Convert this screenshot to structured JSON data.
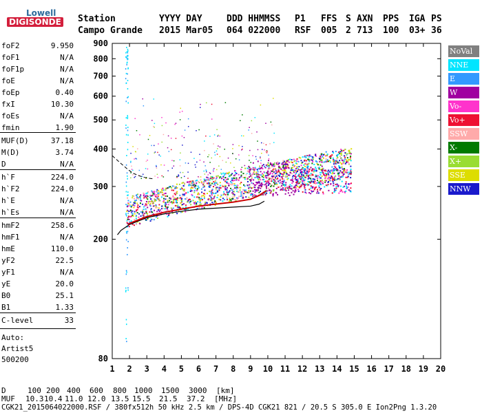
{
  "logo": {
    "line1": "Lowell",
    "line2": "DIGISONDE"
  },
  "header": {
    "labels": [
      "Station",
      "YYYY DAY",
      "DDD HHMMSS",
      "P1",
      "FFS",
      "S",
      "AXN",
      "PPS",
      "IGA",
      "PS"
    ],
    "values": [
      "Campo Grande",
      "2015 Mar05",
      "064 022000",
      "RSF",
      "005",
      "2",
      "713",
      "100",
      "03+",
      "36"
    ]
  },
  "side": [
    {
      "label": "foF2",
      "value": "9.950"
    },
    {
      "label": "foF1",
      "value": "N/A"
    },
    {
      "label": "foF1p",
      "value": "N/A"
    },
    {
      "label": "foE",
      "value": "N/A"
    },
    {
      "label": "foEp",
      "value": "0.40"
    },
    {
      "label": "fxI",
      "value": "10.30"
    },
    {
      "label": "foEs",
      "value": "N/A"
    },
    {
      "label": "fmin",
      "value": "1.90"
    },
    {
      "label": "MUF(D)",
      "value": "37.18"
    },
    {
      "label": "M(D)",
      "value": "3.74"
    },
    {
      "label": "D",
      "value": "N/A"
    },
    {
      "label": "h`F",
      "value": "224.0"
    },
    {
      "label": "h`F2",
      "value": "224.0"
    },
    {
      "label": "h`E",
      "value": "N/A"
    },
    {
      "label": "h`Es",
      "value": "N/A"
    },
    {
      "label": "hmF2",
      "value": "258.6"
    },
    {
      "label": "hmF1",
      "value": "N/A"
    },
    {
      "label": "hmE",
      "value": "110.0"
    },
    {
      "label": "yF2",
      "value": "22.5"
    },
    {
      "label": "yF1",
      "value": "N/A"
    },
    {
      "label": "yE",
      "value": "20.0"
    },
    {
      "label": "B0",
      "value": "25.1"
    },
    {
      "label": "B1",
      "value": "1.33"
    },
    {
      "label": "C-level",
      "value": "33"
    }
  ],
  "autoscaling": {
    "line1": "Auto:",
    "line2": "Artist5",
    "line3": "500200"
  },
  "legend": [
    {
      "name": "NoVal",
      "color": "#808080"
    },
    {
      "name": "NNE",
      "color": "#00e5ff"
    },
    {
      "name": "E",
      "color": "#3399ff"
    },
    {
      "name": "W",
      "color": "#a000a0"
    },
    {
      "name": "Vo-",
      "color": "#ff33cc"
    },
    {
      "name": "Vo+",
      "color": "#ee1133"
    },
    {
      "name": "SSW",
      "color": "#ffaaaa"
    },
    {
      "name": "X-",
      "color": "#007a00"
    },
    {
      "name": "X+",
      "color": "#99dd33"
    },
    {
      "name": "SSE",
      "color": "#dddd00"
    },
    {
      "name": "NNW",
      "color": "#1a1acc"
    }
  ],
  "footer": {
    "d_label": "D",
    "d_values": [
      "100",
      "200",
      "400",
      "600",
      "800",
      "1000",
      "1500",
      "3000",
      "[km]"
    ],
    "muf_label": "MUF",
    "muf_values": [
      "10.3",
      "10.4",
      "11.0",
      "12.0",
      "13.5",
      "15.5",
      "21.5",
      "37.2",
      "[MHz]"
    ],
    "file_line": "CGK21_2015064022000.RSF / 380fx512h 50 kHz 2.5 km / DPS-4D CGK21 821 / 20.5 S 305.0 E Ion2Png 1.3.20"
  },
  "chart_data": {
    "type": "scatter",
    "xlim": [
      1,
      20
    ],
    "ylim": [
      80,
      900
    ],
    "y_scale": "log",
    "x_ticks": [
      "1",
      "2",
      "3",
      "4",
      "5",
      "6",
      "7",
      "8",
      "9",
      "10",
      "11",
      "12",
      "13",
      "14",
      "15",
      "16",
      "17",
      "18",
      "19",
      "20"
    ],
    "y_ticks": [
      80,
      200,
      300,
      400,
      500,
      600,
      700,
      800,
      900
    ],
    "x_trace": {
      "x": [
        1.3,
        1.5,
        1.8,
        2.0,
        2.5,
        3,
        4,
        5,
        6,
        7,
        8,
        9,
        9.5,
        9.8
      ],
      "y": [
        207,
        214,
        220,
        224,
        230,
        236,
        243,
        248,
        252,
        254,
        256,
        258,
        262,
        268
      ]
    },
    "o_trace_solid": {
      "x": [
        1.9,
        2.0,
        2.5,
        3,
        4,
        5,
        6,
        7,
        8,
        9,
        9.5,
        9.9
      ],
      "y": [
        224,
        226,
        232,
        238,
        246,
        252,
        258,
        262,
        266,
        272,
        280,
        290
      ]
    },
    "o_trace_dashed": {
      "x": [
        1.0,
        1.5,
        1.9,
        2.2,
        2.6,
        3.0,
        3.4
      ],
      "y": [
        380,
        358,
        342,
        332,
        325,
        320,
        318
      ]
    },
    "main_band": {
      "x_start": 1.8,
      "x_end": 14.8,
      "y_start": 232,
      "y_end": 340
    }
  }
}
